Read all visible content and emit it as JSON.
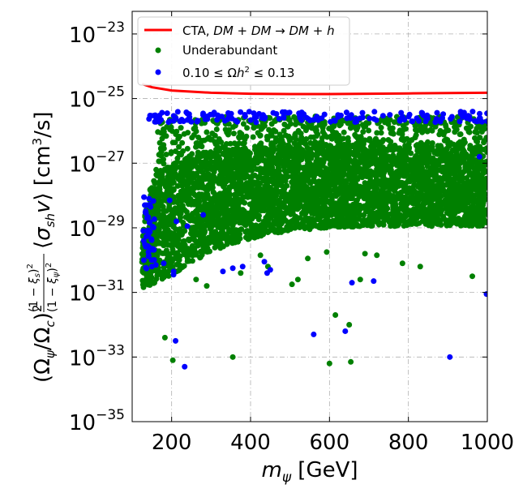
{
  "chart_data": {
    "type": "scatter",
    "title": "",
    "xlabel": "m_ψ [GeV]",
    "ylabel": "(Ω_ψ/Ω_c)² (1−ξ_s)²/(1−ξ_ψ)² ⟨σ_sh v⟩ [cm³/s]",
    "xlim": [
      100,
      1000
    ],
    "ylim_log10": [
      -35,
      -22.3
    ],
    "x_ticks": [
      200,
      400,
      600,
      800,
      1000
    ],
    "x_tick_labels": [
      "200",
      "400",
      "600",
      "800",
      "1000"
    ],
    "y_ticks_log10": [
      -35,
      -33,
      -31,
      -29,
      -27,
      -25,
      -23
    ],
    "y_tick_labels": [
      "10−35",
      "10−33",
      "10−31",
      "10−29",
      "10−27",
      "10−25",
      "10−23"
    ],
    "grid": true,
    "legend_position": "top-left",
    "series": [
      {
        "name": "CTA, DM + DM → DM + h",
        "kind": "line",
        "color": "#ff0000",
        "x": [
          125,
          150,
          200,
          300,
          400,
          500,
          600,
          700,
          800,
          900,
          1000
        ],
        "y_log10": [
          -24.55,
          -24.65,
          -24.75,
          -24.82,
          -24.85,
          -24.86,
          -24.86,
          -24.85,
          -24.84,
          -24.83,
          -24.82
        ]
      },
      {
        "name": "Underabundant",
        "kind": "scatter",
        "color": "#008000",
        "band_upper_log10": [
          [
            125,
            -29.1
          ],
          [
            140,
            -27.9
          ],
          [
            170,
            -27.2
          ],
          [
            200,
            -26.95
          ],
          [
            250,
            -26.75
          ],
          [
            300,
            -26.62
          ],
          [
            400,
            -26.52
          ],
          [
            500,
            -26.45
          ],
          [
            600,
            -26.45
          ],
          [
            700,
            -26.45
          ],
          [
            800,
            -26.45
          ],
          [
            900,
            -26.45
          ],
          [
            1000,
            -26.5
          ]
        ],
        "band_lower_log10": [
          [
            125,
            -30.9
          ],
          [
            150,
            -30.75
          ],
          [
            200,
            -30.45
          ],
          [
            250,
            -30.1
          ],
          [
            300,
            -29.75
          ],
          [
            350,
            -29.5
          ],
          [
            400,
            -29.35
          ],
          [
            450,
            -29.2
          ],
          [
            500,
            -29.1
          ],
          [
            550,
            -29.05
          ],
          [
            600,
            -29.0
          ],
          [
            700,
            -28.95
          ],
          [
            800,
            -28.95
          ],
          [
            900,
            -28.95
          ],
          [
            1000,
            -28.95
          ]
        ],
        "outliers": [
          [
            183,
            -32.4
          ],
          [
            203,
            -33.1
          ],
          [
            262,
            -30.6
          ],
          [
            289,
            -30.8
          ],
          [
            355,
            -33.0
          ],
          [
            375,
            -30.4
          ],
          [
            425,
            -29.85
          ],
          [
            444,
            -30.2
          ],
          [
            505,
            -30.75
          ],
          [
            520,
            -30.6
          ],
          [
            545,
            -29.95
          ],
          [
            593,
            -29.75
          ],
          [
            600,
            -33.2
          ],
          [
            615,
            -31.7
          ],
          [
            650,
            -32.0
          ],
          [
            654,
            -33.15
          ],
          [
            678,
            -30.6
          ],
          [
            690,
            -29.8
          ],
          [
            720,
            -29.85
          ],
          [
            785,
            -30.1
          ],
          [
            830,
            -30.2
          ],
          [
            962,
            -30.5
          ]
        ]
      },
      {
        "name": "0.10 ≤ Ωh² ≤ 0.13",
        "kind": "scatter",
        "color": "#0000ff",
        "top_edge_log10": -25.4,
        "points": [
          [
            130,
            -28.05
          ],
          [
            132,
            -28.3
          ],
          [
            135,
            -28.55
          ],
          [
            138,
            -28.7
          ],
          [
            140,
            -29.1
          ],
          [
            150,
            -30.2
          ],
          [
            160,
            -30.15
          ],
          [
            180,
            -30.1
          ],
          [
            195,
            -28.15
          ],
          [
            212,
            -28.8
          ],
          [
            205,
            -30.35
          ],
          [
            205,
            -30.45
          ],
          [
            210,
            -32.5
          ],
          [
            233,
            -33.3
          ],
          [
            240,
            -28.95
          ],
          [
            280,
            -28.6
          ],
          [
            330,
            -30.35
          ],
          [
            355,
            -30.25
          ],
          [
            380,
            -30.2
          ],
          [
            435,
            -30.05
          ],
          [
            442,
            -30.4
          ],
          [
            450,
            -30.3
          ],
          [
            560,
            -32.3
          ],
          [
            640,
            -32.2
          ],
          [
            657,
            -30.7
          ],
          [
            712,
            -30.65
          ],
          [
            905,
            -33.0
          ],
          [
            998,
            -31.05
          ],
          [
            980,
            -26.8
          ]
        ]
      }
    ]
  }
}
